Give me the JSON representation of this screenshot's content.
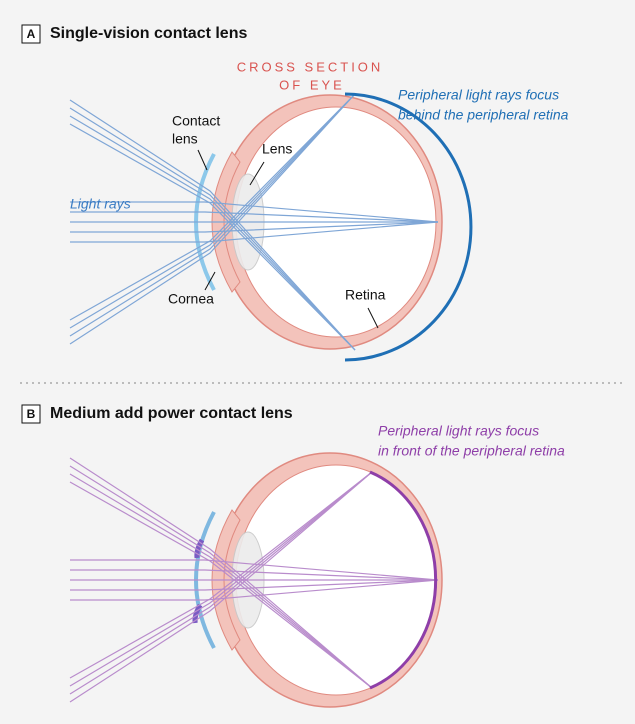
{
  "panels": [
    {
      "label": "A",
      "title": "Single-vision contact lens",
      "caption": [
        "Peripheral light rays focus",
        "behind the peripheral retina"
      ]
    },
    {
      "label": "B",
      "title": "Medium add power contact lens",
      "caption": [
        "Peripheral light rays focus",
        "in front of the peripheral retina"
      ]
    }
  ],
  "labels": {
    "cross_section": [
      "CROSS SECTION",
      "OF EYE"
    ],
    "contact_lens": [
      "Contact",
      "lens"
    ],
    "lens": "Lens",
    "light_rays": "Light rays",
    "cornea": "Cornea",
    "retina": "Retina"
  }
}
